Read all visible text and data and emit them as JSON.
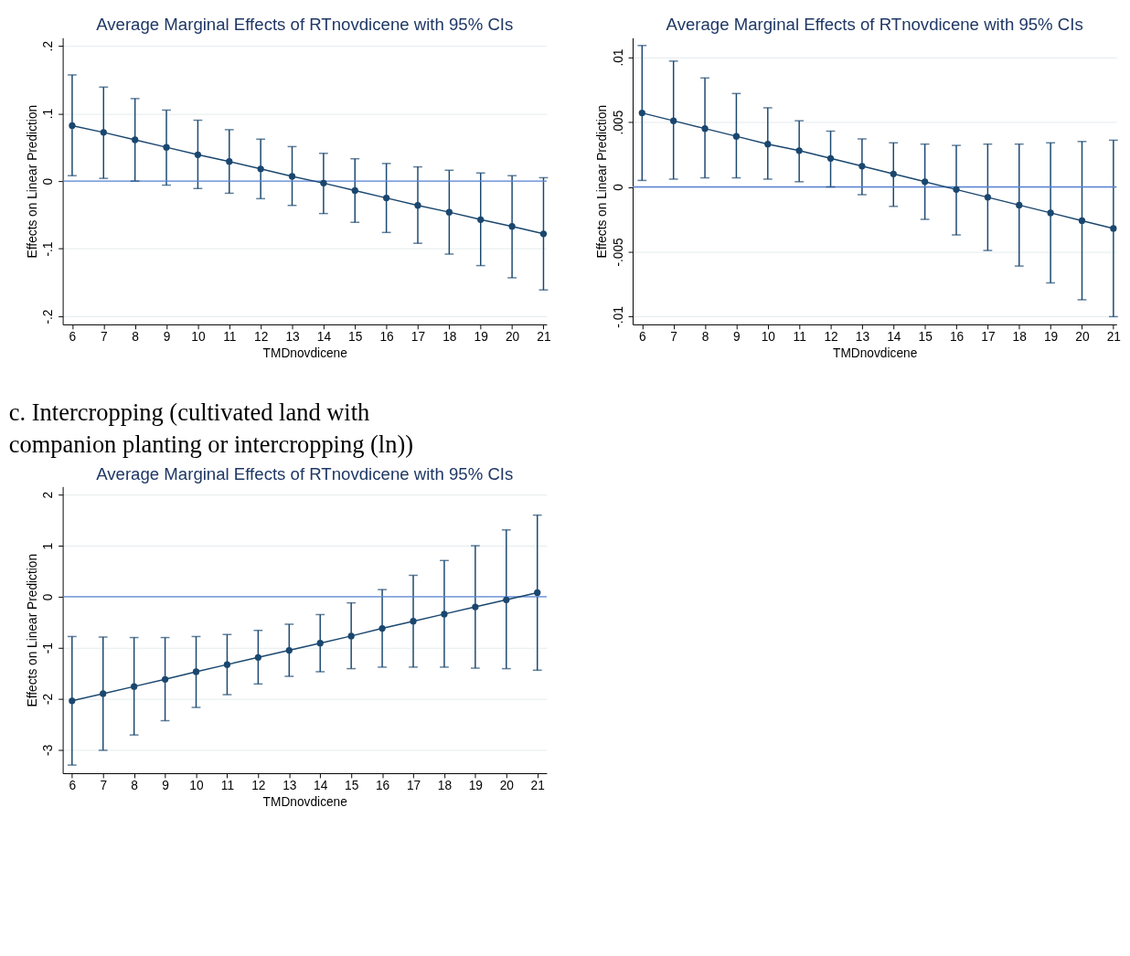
{
  "chart_data": [
    {
      "type": "line",
      "title": "Average Marginal Effects of RTnovdicene with 95% CIs",
      "xlabel": "TMDnovdicene",
      "ylabel": "Effects on Linear Prediction",
      "x": [
        6,
        7,
        8,
        9,
        10,
        11,
        12,
        13,
        14,
        15,
        16,
        17,
        18,
        19,
        20,
        21
      ],
      "series": [
        {
          "color": "#1a476f",
          "values": [
            0.082,
            0.072,
            0.061,
            0.05,
            0.039,
            0.029,
            0.018,
            0.007,
            -0.003,
            -0.014,
            -0.025,
            -0.036,
            -0.046,
            -0.057,
            -0.067,
            -0.078
          ],
          "errors": [
            [
              0.008,
              0.157
            ],
            [
              0.004,
              0.139
            ],
            [
              0.0,
              0.122
            ],
            [
              -0.006,
              0.105
            ],
            [
              -0.011,
              0.09
            ],
            [
              -0.018,
              0.076
            ],
            [
              -0.026,
              0.062
            ],
            [
              -0.036,
              0.051
            ],
            [
              -0.048,
              0.041
            ],
            [
              -0.061,
              0.033
            ],
            [
              -0.076,
              0.026
            ],
            [
              -0.092,
              0.021
            ],
            [
              -0.108,
              0.016
            ],
            [
              -0.125,
              0.012
            ],
            [
              -0.143,
              0.008
            ],
            [
              -0.161,
              0.005
            ]
          ]
        }
      ],
      "xlim": [
        5.7,
        21.1
      ],
      "xticks": [
        6,
        7,
        8,
        9,
        10,
        11,
        12,
        13,
        14,
        15,
        16,
        17,
        18,
        19,
        20,
        21
      ],
      "ylim": [
        -0.212,
        0.212
      ],
      "yticks": [
        {
          "value": -0.2,
          "label": "-.2"
        },
        {
          "value": -0.1,
          "label": "-.1"
        },
        0,
        {
          "value": 0.1,
          "label": ".1"
        },
        {
          "value": 0.2,
          "label": ".2"
        }
      ],
      "ref_lines": [
        {
          "axis": "y",
          "value": 0,
          "color": "#5b84d6"
        }
      ],
      "grid": "y",
      "marker": "circle",
      "line_style": "solid"
    },
    {
      "type": "line",
      "title": "Average Marginal Effects of RTnovdicene with 95% CIs",
      "xlabel": "TMDnovdicene",
      "ylabel": "Effects on Linear Prediction",
      "x": [
        6,
        7,
        8,
        9,
        10,
        11,
        12,
        13,
        14,
        15,
        16,
        17,
        18,
        19,
        20,
        21
      ],
      "series": [
        {
          "color": "#1a476f",
          "values": [
            0.0057,
            0.0051,
            0.0045,
            0.0039,
            0.0033,
            0.0028,
            0.0022,
            0.0016,
            0.001,
            0.0004,
            -0.0002,
            -0.0008,
            -0.0014,
            -0.002,
            -0.0026,
            -0.0032
          ],
          "errors": [
            [
              0.0005,
              0.0109
            ],
            [
              0.0006,
              0.0097
            ],
            [
              0.0007,
              0.0084
            ],
            [
              0.0007,
              0.0072
            ],
            [
              0.0006,
              0.0061
            ],
            [
              0.0004,
              0.0051
            ],
            [
              0.0,
              0.0043
            ],
            [
              -0.0006,
              0.0037
            ],
            [
              -0.0015,
              0.0034
            ],
            [
              -0.0025,
              0.0033
            ],
            [
              -0.0037,
              0.0032
            ],
            [
              -0.0049,
              0.0033
            ],
            [
              -0.0061,
              0.0033
            ],
            [
              -0.0074,
              0.0034
            ],
            [
              -0.0087,
              0.0035
            ],
            [
              -0.01,
              0.0036
            ]
          ]
        }
      ],
      "xlim": [
        5.7,
        21.1
      ],
      "xticks": [
        6,
        7,
        8,
        9,
        10,
        11,
        12,
        13,
        14,
        15,
        16,
        17,
        18,
        19,
        20,
        21
      ],
      "ylim": [
        -0.0106,
        0.0115
      ],
      "yticks": [
        {
          "value": -0.01,
          "label": "-.01"
        },
        {
          "value": -0.005,
          "label": "-.005"
        },
        0,
        {
          "value": 0.005,
          "label": ".005"
        },
        {
          "value": 0.01,
          "label": ".01"
        }
      ],
      "ref_lines": [
        {
          "axis": "y",
          "value": 0,
          "color": "#5b84d6"
        }
      ],
      "grid": "y",
      "marker": "circle",
      "line_style": "solid"
    },
    {
      "type": "line",
      "title": "Average Marginal Effects of RTnovdicene with 95% CIs",
      "xlabel": "TMDnovdicene",
      "ylabel": "Effects on Linear Prediction",
      "x": [
        6,
        7,
        8,
        9,
        10,
        11,
        12,
        13,
        14,
        15,
        16,
        17,
        18,
        19,
        20,
        21
      ],
      "annotations": [
        "c. Intercropping (cultivated land with companion planting or intercropping (ln))"
      ],
      "series": [
        {
          "color": "#1a476f",
          "values": [
            -2.04,
            -1.9,
            -1.76,
            -1.62,
            -1.47,
            -1.33,
            -1.19,
            -1.05,
            -0.91,
            -0.77,
            -0.62,
            -0.48,
            -0.34,
            -0.2,
            -0.06,
            0.08
          ],
          "errors": [
            [
              -3.3,
              -0.78
            ],
            [
              -3.01,
              -0.79
            ],
            [
              -2.71,
              -0.8
            ],
            [
              -2.43,
              -0.8
            ],
            [
              -2.17,
              -0.78
            ],
            [
              -1.92,
              -0.74
            ],
            [
              -1.71,
              -0.66
            ],
            [
              -1.56,
              -0.54
            ],
            [
              -1.47,
              -0.35
            ],
            [
              -1.41,
              -0.12
            ],
            [
              -1.38,
              0.14
            ],
            [
              -1.38,
              0.42
            ],
            [
              -1.38,
              0.71
            ],
            [
              -1.4,
              1.0
            ],
            [
              -1.41,
              1.31
            ],
            [
              -1.44,
              1.6
            ]
          ]
        }
      ],
      "xlim": [
        5.7,
        21.3
      ],
      "xticks": [
        6,
        7,
        8,
        9,
        10,
        11,
        12,
        13,
        14,
        15,
        16,
        17,
        18,
        19,
        20,
        21
      ],
      "ylim": [
        -3.46,
        2.16
      ],
      "yticks": [
        -3,
        -2,
        -1,
        0,
        1,
        2
      ],
      "ref_lines": [
        {
          "axis": "y",
          "value": 0,
          "color": "#5b84d6"
        }
      ],
      "grid": "y",
      "marker": "circle",
      "line_style": "solid"
    }
  ]
}
